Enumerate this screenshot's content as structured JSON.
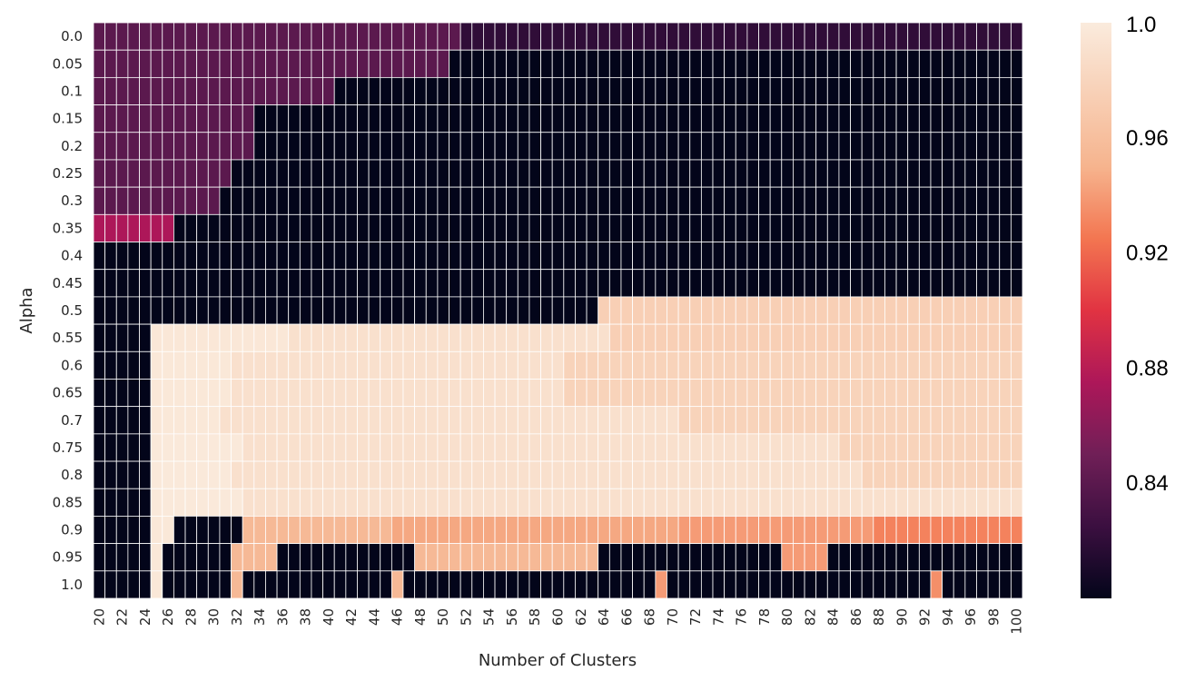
{
  "chart_data": {
    "type": "heatmap",
    "xlabel": "Number of Clusters",
    "ylabel": "Alpha",
    "x": [
      20,
      21,
      22,
      23,
      24,
      25,
      26,
      27,
      28,
      29,
      30,
      31,
      32,
      33,
      34,
      35,
      36,
      37,
      38,
      39,
      40,
      41,
      42,
      43,
      44,
      45,
      46,
      47,
      48,
      49,
      50,
      51,
      52,
      53,
      54,
      55,
      56,
      57,
      58,
      59,
      60,
      61,
      62,
      63,
      64,
      65,
      66,
      67,
      68,
      69,
      70,
      71,
      72,
      73,
      74,
      75,
      76,
      77,
      78,
      79,
      80,
      81,
      82,
      83,
      84,
      85,
      86,
      87,
      88,
      89,
      90,
      91,
      92,
      93,
      94,
      95,
      96,
      97,
      98,
      99,
      100
    ],
    "x_tick_labels": [
      "20",
      "22",
      "24",
      "26",
      "28",
      "30",
      "32",
      "34",
      "36",
      "38",
      "40",
      "42",
      "44",
      "46",
      "48",
      "50",
      "52",
      "54",
      "56",
      "58",
      "60",
      "62",
      "64",
      "66",
      "68",
      "70",
      "72",
      "74",
      "76",
      "78",
      "80",
      "82",
      "84",
      "86",
      "88",
      "90",
      "92",
      "94",
      "96",
      "98",
      "100"
    ],
    "y_tick_labels": [
      "0.0",
      "0.05",
      "0.1",
      "0.15",
      "0.2",
      "0.25",
      "0.3",
      "0.35",
      "0.4",
      "0.45",
      "0.5",
      "0.55",
      "0.6",
      "0.65",
      "0.7",
      "0.75",
      "0.8",
      "0.85",
      "0.9",
      "0.95",
      "1.0"
    ],
    "colorbar": {
      "range": [
        0.8,
        1.0
      ],
      "tick_labels": [
        "1.0",
        "0.96",
        "0.92",
        "0.88",
        "0.84"
      ],
      "tick_values": [
        1.0,
        0.96,
        0.92,
        0.88,
        0.84
      ],
      "colormap": "rocket"
    },
    "grid": true,
    "rows": [
      {
        "segments": [
          [
            20,
            51,
            0.84
          ],
          [
            52,
            100,
            0.82
          ]
        ]
      },
      {
        "segments": [
          [
            20,
            50,
            0.84
          ],
          [
            51,
            100,
            0.8
          ]
        ]
      },
      {
        "segments": [
          [
            20,
            40,
            0.84
          ],
          [
            41,
            100,
            0.8
          ]
        ]
      },
      {
        "segments": [
          [
            20,
            33,
            0.84
          ],
          [
            34,
            100,
            0.8
          ]
        ]
      },
      {
        "segments": [
          [
            20,
            33,
            0.84
          ],
          [
            34,
            100,
            0.8
          ]
        ]
      },
      {
        "segments": [
          [
            20,
            31,
            0.84
          ],
          [
            32,
            100,
            0.8
          ]
        ]
      },
      {
        "segments": [
          [
            20,
            30,
            0.84
          ],
          [
            31,
            100,
            0.8
          ]
        ]
      },
      {
        "segments": [
          [
            20,
            26,
            0.875
          ],
          [
            27,
            100,
            0.8
          ]
        ]
      },
      {
        "segments": [
          [
            20,
            100,
            0.8
          ]
        ]
      },
      {
        "segments": [
          [
            20,
            100,
            0.8
          ]
        ]
      },
      {
        "segments": [
          [
            20,
            63,
            0.8
          ],
          [
            64,
            100,
            0.975
          ]
        ]
      },
      {
        "segments": [
          [
            20,
            24,
            0.8
          ],
          [
            25,
            36,
            0.996
          ],
          [
            37,
            64,
            0.99
          ],
          [
            65,
            100,
            0.975
          ]
        ]
      },
      {
        "segments": [
          [
            20,
            24,
            0.8
          ],
          [
            25,
            31,
            0.997
          ],
          [
            32,
            60,
            0.99
          ],
          [
            61,
            100,
            0.978
          ]
        ]
      },
      {
        "segments": [
          [
            20,
            24,
            0.8
          ],
          [
            25,
            31,
            0.997
          ],
          [
            32,
            60,
            0.99
          ],
          [
            61,
            100,
            0.978
          ]
        ]
      },
      {
        "segments": [
          [
            20,
            24,
            0.8
          ],
          [
            25,
            30,
            0.997
          ],
          [
            31,
            70,
            0.99
          ],
          [
            71,
            100,
            0.978
          ]
        ]
      },
      {
        "segments": [
          [
            20,
            24,
            0.8
          ],
          [
            25,
            32,
            0.998
          ],
          [
            33,
            84,
            0.99
          ],
          [
            85,
            100,
            0.978
          ]
        ]
      },
      {
        "segments": [
          [
            20,
            24,
            0.8
          ],
          [
            25,
            31,
            0.998
          ],
          [
            32,
            86,
            0.99
          ],
          [
            87,
            100,
            0.978
          ]
        ]
      },
      {
        "segments": [
          [
            20,
            24,
            0.8
          ],
          [
            25,
            32,
            0.998
          ],
          [
            33,
            100,
            0.99
          ]
        ]
      },
      {
        "segments": [
          [
            20,
            24,
            0.8
          ],
          [
            25,
            26,
            0.997
          ],
          [
            27,
            32,
            0.8
          ],
          [
            33,
            45,
            0.955
          ],
          [
            46,
            70,
            0.945
          ],
          [
            71,
            87,
            0.94
          ],
          [
            88,
            100,
            0.93
          ]
        ]
      },
      {
        "segments": [
          [
            20,
            24,
            0.8
          ],
          [
            25,
            25,
            0.997
          ],
          [
            26,
            31,
            0.8
          ],
          [
            32,
            35,
            0.955
          ],
          [
            36,
            47,
            0.8
          ],
          [
            48,
            63,
            0.955
          ],
          [
            64,
            79,
            0.8
          ],
          [
            80,
            83,
            0.94
          ],
          [
            84,
            100,
            0.8
          ]
        ]
      },
      {
        "segments": [
          [
            20,
            24,
            0.8
          ],
          [
            25,
            25,
            0.997
          ],
          [
            26,
            31,
            0.8
          ],
          [
            32,
            32,
            0.955
          ],
          [
            33,
            45,
            0.8
          ],
          [
            46,
            46,
            0.955
          ],
          [
            47,
            68,
            0.8
          ],
          [
            69,
            69,
            0.94
          ],
          [
            70,
            92,
            0.8
          ],
          [
            93,
            93,
            0.935
          ],
          [
            94,
            100,
            0.8
          ]
        ]
      }
    ]
  }
}
